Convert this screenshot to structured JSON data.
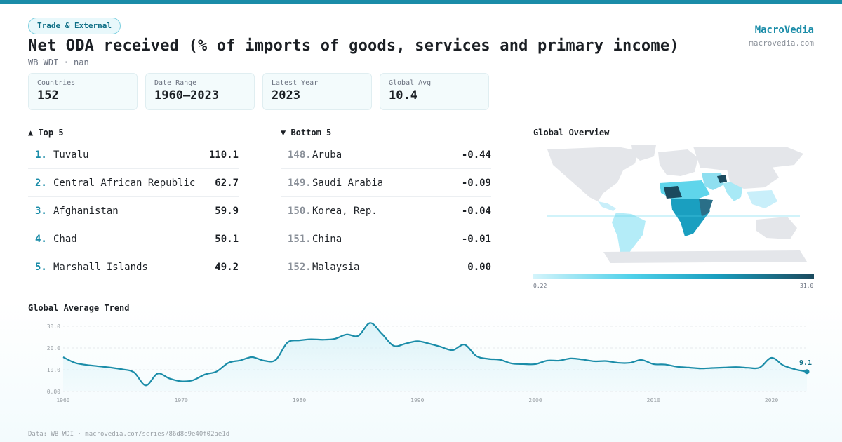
{
  "tag": "Trade & External",
  "title": "Net ODA received (% of imports of goods, services and primary income)",
  "subtitle": "WB WDI · nan",
  "brand": {
    "name": "MacroVedia",
    "url": "macrovedia.com"
  },
  "stats": [
    {
      "label": "Countries",
      "value": "152"
    },
    {
      "label": "Date Range",
      "value": "1960–2023"
    },
    {
      "label": "Latest Year",
      "value": "2023"
    },
    {
      "label": "Global Avg",
      "value": "10.4"
    }
  ],
  "top5": {
    "heading": "▲ Top 5",
    "items": [
      {
        "rank": "1.",
        "name": "Tuvalu",
        "value": "110.1"
      },
      {
        "rank": "2.",
        "name": "Central African Republic",
        "value": "62.7"
      },
      {
        "rank": "3.",
        "name": "Afghanistan",
        "value": "59.9"
      },
      {
        "rank": "4.",
        "name": "Chad",
        "value": "50.1"
      },
      {
        "rank": "5.",
        "name": "Marshall Islands",
        "value": "49.2"
      }
    ]
  },
  "bottom5": {
    "heading": "▼ Bottom 5",
    "items": [
      {
        "rank": "148.",
        "name": "Aruba",
        "value": "-0.44"
      },
      {
        "rank": "149.",
        "name": "Saudi Arabia",
        "value": "-0.09"
      },
      {
        "rank": "150.",
        "name": "Korea, Rep.",
        "value": "-0.04"
      },
      {
        "rank": "151.",
        "name": "China",
        "value": "-0.01"
      },
      {
        "rank": "152.",
        "name": "Malaysia",
        "value": "0.00"
      }
    ]
  },
  "map": {
    "heading": "Global Overview",
    "legend_min": "0.22",
    "legend_max": "31.0"
  },
  "trend": {
    "heading": "Global Average Trend"
  },
  "footer": "Data: WB WDI · macrovedia.com/series/86d8e9e40f02ae1d",
  "chart_data": {
    "type": "area",
    "title": "Global Average Trend",
    "xlabel": "",
    "ylabel": "",
    "xlim": [
      1960,
      2023
    ],
    "ylim": [
      0,
      30
    ],
    "yticks": [
      "0.00",
      "10.0",
      "20.0",
      "30.0"
    ],
    "xticks": [
      "1960",
      "1970",
      "1980",
      "1990",
      "2000",
      "2010",
      "2020"
    ],
    "grid": true,
    "end_label": "9.1",
    "colors": {
      "line": "#1a8ca8",
      "fill": "#d9f2f8"
    },
    "x": [
      1960,
      1961,
      1962,
      1963,
      1964,
      1965,
      1966,
      1967,
      1968,
      1969,
      1970,
      1971,
      1972,
      1973,
      1974,
      1975,
      1976,
      1977,
      1978,
      1979,
      1980,
      1981,
      1982,
      1983,
      1984,
      1985,
      1986,
      1987,
      1988,
      1989,
      1990,
      1991,
      1992,
      1993,
      1994,
      1995,
      1996,
      1997,
      1998,
      1999,
      2000,
      2001,
      2002,
      2003,
      2004,
      2005,
      2006,
      2007,
      2008,
      2009,
      2010,
      2011,
      2012,
      2013,
      2014,
      2015,
      2016,
      2017,
      2018,
      2019,
      2020,
      2021,
      2022,
      2023
    ],
    "values": [
      15.8,
      13.2,
      12.2,
      11.6,
      11.0,
      10.2,
      8.8,
      2.8,
      8.2,
      6.0,
      4.7,
      5.2,
      7.8,
      9.2,
      13.2,
      14.3,
      15.8,
      14.2,
      14.5,
      22.5,
      23.5,
      24.0,
      23.8,
      24.2,
      26.2,
      25.6,
      31.5,
      26.5,
      21.0,
      22.0,
      23.1,
      22.0,
      20.5,
      19.0,
      21.5,
      16.3,
      15.0,
      14.6,
      12.9,
      12.6,
      12.6,
      14.2,
      14.2,
      15.2,
      14.7,
      13.9,
      14.0,
      13.2,
      13.2,
      14.5,
      12.6,
      12.4,
      11.4,
      11.0,
      10.6,
      10.8,
      11.0,
      11.2,
      10.9,
      11.0,
      15.5,
      12.0,
      10.2,
      9.1
    ]
  }
}
